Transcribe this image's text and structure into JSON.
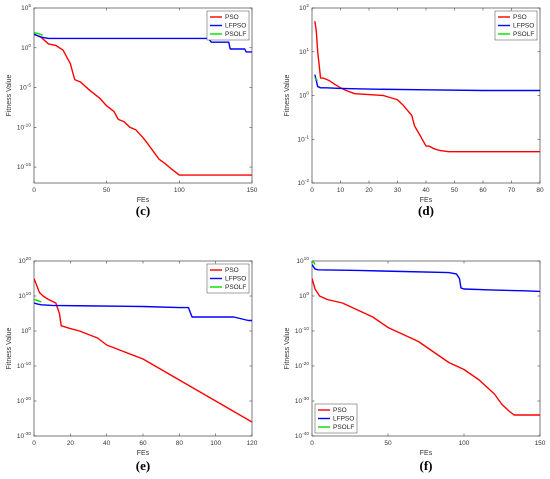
{
  "chart_data": [
    {
      "panel": "(c)",
      "type": "line",
      "xlabel": "FEs",
      "ylabel": "Fitness Value",
      "yscale": "log",
      "xlim": [
        0,
        150
      ],
      "ylim_exp": [
        -17,
        5
      ],
      "xticks": [
        0,
        50,
        100,
        150
      ],
      "ytick_exps": [
        -15,
        -10,
        -5,
        0,
        5
      ],
      "legend_position": "top-right",
      "series": [
        {
          "name": "PSO",
          "color": "#ff0000",
          "x": [
            0,
            5,
            10,
            15,
            20,
            25,
            28,
            32,
            38,
            45,
            50,
            55,
            58,
            62,
            66,
            70,
            75,
            78,
            82,
            86,
            90,
            95,
            100,
            104,
            108,
            150
          ],
          "y": [
            50,
            20,
            3,
            2,
            0.5,
            0.01,
            0.0001,
            5e-05,
            5e-06,
            5e-07,
            5e-08,
            1e-08,
            1e-09,
            5e-10,
            1e-10,
            5e-11,
            5e-12,
            1e-12,
            1e-13,
            1e-14,
            3e-15,
            5e-16,
            1e-16,
            1e-16,
            1e-16,
            1e-16
          ]
        },
        {
          "name": "LFPSO",
          "color": "#0000ff",
          "x": [
            0,
            3,
            6,
            10,
            120,
            122,
            134,
            135,
            145,
            146,
            150
          ],
          "y": [
            50,
            30,
            20,
            15,
            15,
            5,
            5,
            0.7,
            0.7,
            0.3,
            0.3
          ]
        },
        {
          "name": "PSOLF",
          "color": "#00dd00",
          "x": [
            0,
            3,
            6
          ],
          "y": [
            80,
            60,
            40
          ]
        }
      ]
    },
    {
      "panel": "(d)",
      "type": "line",
      "xlabel": "FEs",
      "ylabel": "Fitness Value",
      "yscale": "log",
      "xlim": [
        0,
        80
      ],
      "ylim_exp": [
        -2,
        2
      ],
      "xticks": [
        0,
        10,
        20,
        30,
        40,
        50,
        60,
        70,
        80
      ],
      "ytick_exps": [
        -2,
        -1,
        0,
        1,
        2
      ],
      "legend_position": "top-right",
      "series": [
        {
          "name": "PSO",
          "color": "#ff0000",
          "x": [
            1,
            1.5,
            2,
            2.5,
            3,
            4,
            6,
            8,
            10,
            12,
            15,
            20,
            25,
            30,
            32,
            33,
            35,
            36,
            38,
            40,
            41,
            43,
            45,
            48,
            50,
            80
          ],
          "y": [
            50,
            30,
            10,
            5,
            2.5,
            2.5,
            2.2,
            1.8,
            1.5,
            1.3,
            1.1,
            1.05,
            1.0,
            0.8,
            0.6,
            0.5,
            0.35,
            0.2,
            0.12,
            0.07,
            0.07,
            0.06,
            0.055,
            0.052,
            0.052,
            0.052
          ]
        },
        {
          "name": "LFPSO",
          "color": "#0000ff",
          "x": [
            1,
            2,
            3,
            5,
            10,
            20,
            40,
            60,
            80
          ],
          "y": [
            3,
            1.6,
            1.5,
            1.5,
            1.45,
            1.4,
            1.35,
            1.3,
            1.3
          ]
        },
        {
          "name": "PSOLF",
          "color": "#00dd00",
          "x": [
            1,
            1.5,
            2
          ],
          "y": [
            2.5,
            2.3,
            2.2
          ]
        }
      ]
    },
    {
      "panel": "(e)",
      "type": "line",
      "xlabel": "FEs",
      "ylabel": "Fitness Value",
      "yscale": "log",
      "xlim": [
        0,
        120
      ],
      "ylim_exp": [
        -30,
        20
      ],
      "xticks": [
        0,
        20,
        40,
        60,
        80,
        100,
        120
      ],
      "ytick_exps": [
        -30,
        -20,
        -10,
        0,
        10,
        20
      ],
      "legend_position": "top-right",
      "series": [
        {
          "name": "PSO",
          "color": "#ff0000",
          "x": [
            0,
            3,
            5,
            8,
            12,
            14,
            15,
            20,
            25,
            30,
            35,
            40,
            50,
            60,
            70,
            80,
            90,
            100,
            110,
            120
          ],
          "y": [
            1000000000000000.0,
            100000000000.0,
            10000000000.0,
            1000000000.0,
            100000000.0,
            100000.0,
            30.0,
            5.0,
            1.0,
            0.1,
            0.01,
            0.0001,
            1e-06,
            1e-08,
            1e-11,
            1e-14,
            1e-17,
            1e-20,
            1e-23,
            1e-26
          ]
        },
        {
          "name": "LFPSO",
          "color": "#0000ff",
          "x": [
            0,
            2,
            4,
            10,
            30,
            60,
            80,
            85,
            87,
            100,
            110,
            118,
            120
          ],
          "y": [
            100000000.0,
            50000000.0,
            30000000.0,
            20000000.0,
            15000000.0,
            10000000.0,
            5000000.0,
            5000000.0,
            10000.0,
            10000.0,
            10000.0,
            1000.0,
            1000.0
          ]
        },
        {
          "name": "PSOLF",
          "color": "#00dd00",
          "x": [
            0,
            2,
            4
          ],
          "y": [
            1000000000.0,
            500000000.0,
            200000000.0
          ]
        }
      ]
    },
    {
      "panel": "(f)",
      "type": "line",
      "xlabel": "FEs",
      "ylabel": "Fitness Value",
      "yscale": "log",
      "xlim": [
        0,
        150
      ],
      "ylim_exp": [
        -40,
        10
      ],
      "xticks": [
        0,
        50,
        100,
        150
      ],
      "ytick_exps": [
        -40,
        -30,
        -20,
        -10,
        0,
        10
      ],
      "legend_position": "bottom-left",
      "series": [
        {
          "name": "PSO",
          "color": "#ff0000",
          "x": [
            0,
            2,
            5,
            10,
            20,
            30,
            40,
            50,
            60,
            70,
            80,
            90,
            100,
            110,
            120,
            125,
            130,
            133,
            150
          ],
          "y": [
            100000.0,
            100.0,
            1.0,
            0.1,
            0.01,
            0.0001,
            1e-06,
            1e-09,
            1e-11,
            1e-13,
            1e-16,
            1e-19,
            1e-21,
            1e-24,
            1e-28,
            1e-31,
            1e-33,
            1e-34,
            1e-34
          ]
        },
        {
          "name": "LFPSO",
          "color": "#0000ff",
          "x": [
            0,
            2,
            4,
            30,
            60,
            90,
            95,
            97,
            98,
            100,
            120,
            140,
            150
          ],
          "y": [
            1000000000.0,
            50000000.0,
            30000000.0,
            20000000.0,
            10000000.0,
            5000000.0,
            2000000.0,
            100000.0,
            200.0,
            100.0,
            50.0,
            30.0,
            20.0
          ]
        },
        {
          "name": "PSOLF",
          "color": "#00dd00",
          "x": [
            0,
            1,
            2
          ],
          "y": [
            10000000000.0,
            5000000000.0,
            1000000000.0
          ]
        }
      ]
    }
  ]
}
